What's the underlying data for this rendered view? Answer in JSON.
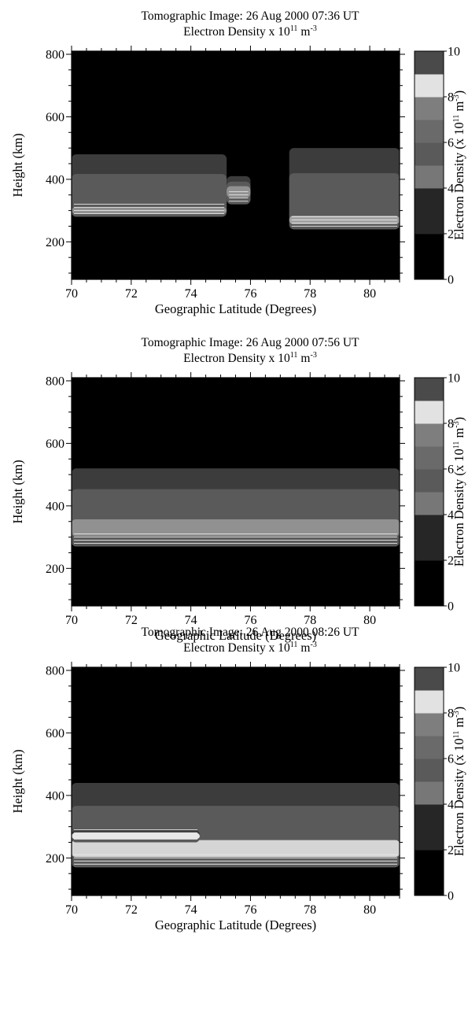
{
  "chart_data": [
    {
      "type": "heatmap",
      "title": "Tomographic Image:   26 Aug 2000   07:36 UT",
      "subtitle_text": "Electron Density x 10",
      "subtitle_exp": "11",
      "subtitle_unit": "m",
      "subtitle_unit_exp": "-3",
      "xlabel": "Geographic Latitude (Degrees)",
      "ylabel": "Height (km)",
      "xlim": [
        70,
        81
      ],
      "ylim": [
        80,
        810
      ],
      "xticks": [
        "70",
        "72",
        "74",
        "76",
        "78",
        "80"
      ],
      "yticks": [
        "200",
        "400",
        "600",
        "800"
      ],
      "colorbar": {
        "label_text": "Electron Density (x 10",
        "label_exp": "11",
        "label_unit": " m",
        "label_unit_exp": "-3",
        "label_close": ")",
        "range": [
          0,
          10
        ],
        "ticks": [
          "0",
          "2",
          "4",
          "6",
          "8",
          "10"
        ]
      },
      "regions": [
        {
          "name": "",
          "lat_min": 70.0,
          "lat_max": 75.2,
          "bottom_km": 280,
          "top_km": 480,
          "peak_km": 300,
          "peak_density": 5
        },
        {
          "name": "",
          "lat_min": 75.2,
          "lat_max": 76.0,
          "bottom_km": 320,
          "top_km": 410,
          "peak_km": 360,
          "peak_density": 5
        },
        {
          "name": "",
          "lat_min": 77.3,
          "lat_max": 81.0,
          "bottom_km": 240,
          "top_km": 500,
          "peak_km": 270,
          "peak_density": 6
        }
      ]
    },
    {
      "type": "heatmap",
      "title": "Tomographic Image:   26 Aug 2000   07:56 UT",
      "subtitle_text": "Electron Density x 10",
      "subtitle_exp": "11",
      "subtitle_unit": "m",
      "subtitle_unit_exp": "-3",
      "xlabel": "Geographic Latitude (Degrees)",
      "ylabel": "Height (km)",
      "xlim": [
        70,
        81
      ],
      "ylim": [
        80,
        810
      ],
      "xticks": [
        "70",
        "72",
        "74",
        "76",
        "78",
        "80"
      ],
      "yticks": [
        "200",
        "400",
        "600",
        "800"
      ],
      "colorbar": {
        "label_text": "Electron Density (x 10",
        "label_exp": "11",
        "label_unit": " m",
        "label_unit_exp": "-3",
        "label_close": ")",
        "range": [
          0,
          10
        ],
        "ticks": [
          "0",
          "2",
          "4",
          "6",
          "8",
          "10"
        ]
      },
      "regions": [
        {
          "name": "",
          "lat_min": 70.0,
          "lat_max": 81.0,
          "bottom_km": 270,
          "top_km": 520,
          "peak_km": 330,
          "peak_density": 5
        }
      ]
    },
    {
      "type": "heatmap",
      "title": "Tomographic Image:   26 Aug 2000   08:26 UT",
      "subtitle_text": "Electron Density x 10",
      "subtitle_exp": "11",
      "subtitle_unit": "m",
      "subtitle_unit_exp": "-3",
      "xlabel": "Geographic Latitude (Degrees)",
      "ylabel": "Height (km)",
      "xlim": [
        70,
        81
      ],
      "ylim": [
        80,
        810
      ],
      "xticks": [
        "70",
        "72",
        "74",
        "76",
        "78",
        "80"
      ],
      "yticks": [
        "200",
        "400",
        "600",
        "800"
      ],
      "colorbar": {
        "label_text": "Electron Density (x 10",
        "label_exp": "11",
        "label_unit": " m",
        "label_unit_exp": "-3",
        "label_close": ")",
        "range": [
          0,
          10
        ],
        "ticks": [
          "0",
          "2",
          "4",
          "6",
          "8",
          "10"
        ]
      },
      "regions": [
        {
          "name": "",
          "lat_min": 70.0,
          "lat_max": 81.0,
          "bottom_km": 170,
          "top_km": 440,
          "peak_km": 230,
          "peak_density": 9
        },
        {
          "name": "",
          "lat_min": 70.0,
          "lat_max": 74.3,
          "bottom_km": 250,
          "top_km": 290,
          "peak_km": 270,
          "peak_density": 10
        }
      ]
    }
  ]
}
